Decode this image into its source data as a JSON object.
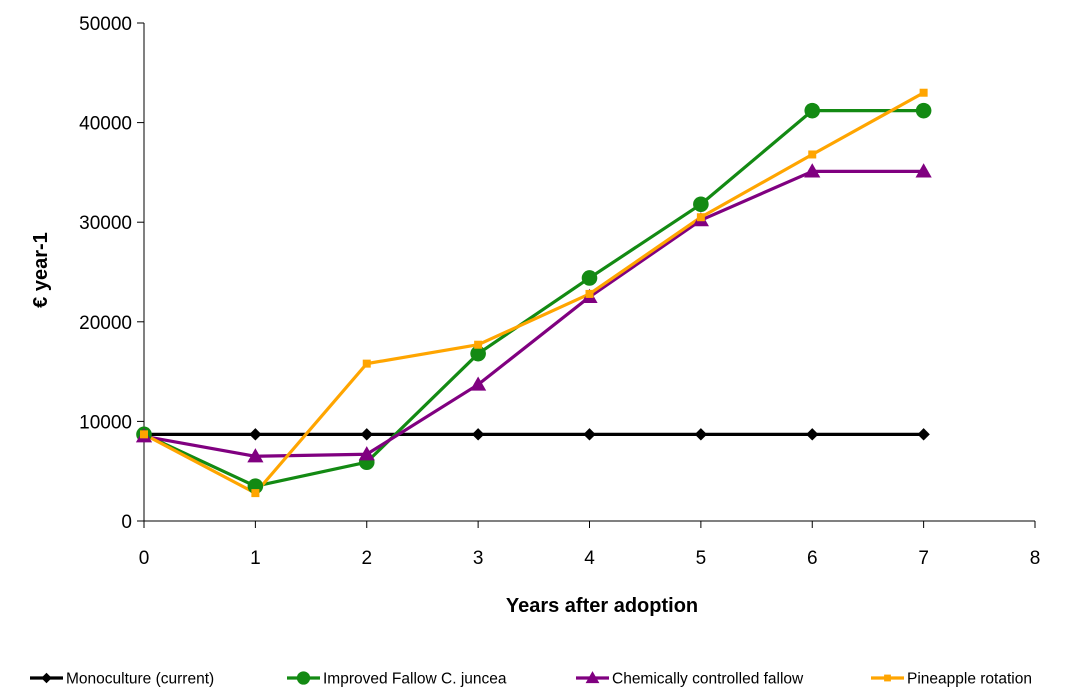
{
  "chart_data": {
    "type": "line",
    "title": "",
    "xlabel": "Years after adoption",
    "ylabel": "€ year-1",
    "xlim": [
      0,
      8
    ],
    "ylim": [
      0,
      50000
    ],
    "xticks": [
      0,
      1,
      2,
      3,
      4,
      5,
      6,
      7,
      8
    ],
    "yticks": [
      0,
      10000,
      20000,
      30000,
      40000,
      50000
    ],
    "grid": false,
    "legend_position": "bottom",
    "series": [
      {
        "name": "Monoculture (current)",
        "color": "#000000",
        "marker": "diamond",
        "x": [
          0,
          1,
          2,
          3,
          4,
          5,
          6,
          7
        ],
        "y": [
          8700,
          8700,
          8700,
          8700,
          8700,
          8700,
          8700,
          8700
        ]
      },
      {
        "name": "Improved Fallow C. juncea",
        "color": "#138a13",
        "marker": "circle",
        "x": [
          0,
          1,
          2,
          3,
          4,
          5,
          6,
          7
        ],
        "y": [
          8700,
          3500,
          5900,
          16800,
          24400,
          31800,
          41200,
          41200
        ]
      },
      {
        "name": "Chemically controlled fallow",
        "color": "#800080",
        "marker": "triangle",
        "x": [
          0,
          1,
          2,
          3,
          4,
          5,
          6,
          7
        ],
        "y": [
          8500,
          6500,
          6700,
          13700,
          22500,
          30200,
          35100,
          35100
        ]
      },
      {
        "name": "Pineapple rotation",
        "color": "#ffa500",
        "marker": "square",
        "x": [
          0,
          1,
          2,
          3,
          4,
          5,
          6,
          7
        ],
        "y": [
          8700,
          2800,
          15800,
          17700,
          22800,
          30500,
          36800,
          43000
        ]
      }
    ]
  }
}
